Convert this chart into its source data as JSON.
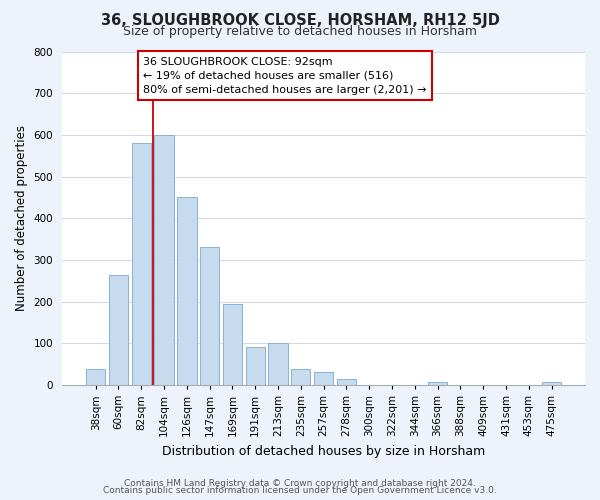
{
  "title": "36, SLOUGHBROOK CLOSE, HORSHAM, RH12 5JD",
  "subtitle": "Size of property relative to detached houses in Horsham",
  "xlabel": "Distribution of detached houses by size in Horsham",
  "ylabel": "Number of detached properties",
  "bar_labels": [
    "38sqm",
    "60sqm",
    "82sqm",
    "104sqm",
    "126sqm",
    "147sqm",
    "169sqm",
    "191sqm",
    "213sqm",
    "235sqm",
    "257sqm",
    "278sqm",
    "300sqm",
    "322sqm",
    "344sqm",
    "366sqm",
    "388sqm",
    "409sqm",
    "431sqm",
    "453sqm",
    "475sqm"
  ],
  "bar_heights": [
    38,
    265,
    580,
    600,
    450,
    330,
    195,
    90,
    100,
    38,
    32,
    14,
    0,
    0,
    0,
    8,
    0,
    0,
    0,
    0,
    8
  ],
  "bar_color": "#c6dcee",
  "bar_edge_color": "#8ab4d4",
  "vline_x_index": 2,
  "vline_color": "#cc0000",
  "ylim": [
    0,
    800
  ],
  "yticks": [
    0,
    100,
    200,
    300,
    400,
    500,
    600,
    700,
    800
  ],
  "annotation_box_line1": "36 SLOUGHBROOK CLOSE: 92sqm",
  "annotation_box_line2": "← 19% of detached houses are smaller (516)",
  "annotation_box_line3": "80% of semi-detached houses are larger (2,201) →",
  "footer_line1": "Contains HM Land Registry data © Crown copyright and database right 2024.",
  "footer_line2": "Contains public sector information licensed under the Open Government Licence v3.0.",
  "bg_color": "#eef2fb",
  "plot_bg_color": "#ffffff",
  "grid_color": "#d0d8e8",
  "title_fontsize": 10.5,
  "subtitle_fontsize": 9,
  "ylabel_fontsize": 8.5,
  "xlabel_fontsize": 9,
  "tick_fontsize": 7.5,
  "annotation_fontsize": 8,
  "footer_fontsize": 6.5
}
